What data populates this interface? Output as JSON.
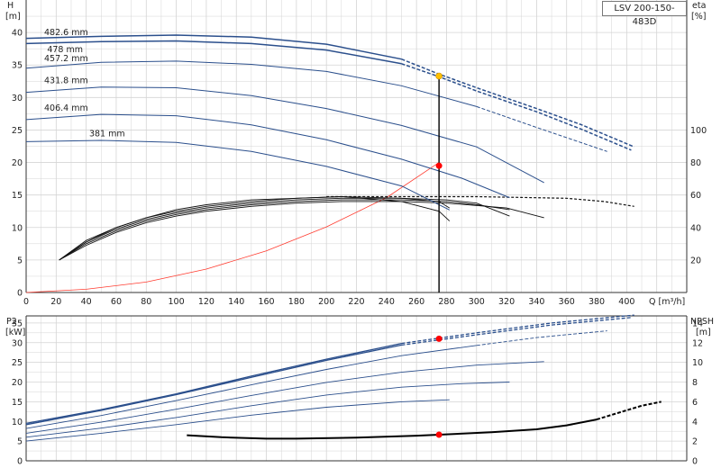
{
  "model": "LSV 200-150-483D",
  "colors": {
    "curve_blue": "#2b4f8c",
    "npsh_black": "#000000",
    "system_red": "#ff3b2f",
    "operating_point": "#ff0000",
    "duty_point_marker": "#ffc000",
    "grid": "#d4d4d4"
  },
  "chart_data": [
    {
      "type": "line",
      "id": "head-curve",
      "ylabel_left": "H",
      "ylabel_left_unit": "[m]",
      "ylabel_right": "eta",
      "ylabel_right_unit": "[%]",
      "xlabel": "Q [m³/h]",
      "xlim": [
        0,
        440
      ],
      "ylim": [
        0,
        45
      ],
      "ylim_right": [
        0,
        100
      ],
      "xticks": [
        0,
        20,
        40,
        60,
        80,
        100,
        120,
        140,
        160,
        180,
        200,
        220,
        240,
        260,
        280,
        300,
        320,
        340,
        360,
        380,
        400
      ],
      "yticks": [
        0,
        5,
        10,
        15,
        20,
        25,
        30,
        35,
        40
      ],
      "yticks_right": [
        20,
        40,
        60,
        80,
        100
      ],
      "grid": true,
      "head_series": [
        {
          "name": "482.6 mm",
          "points": [
            [
              0,
              39.1
            ],
            [
              50,
              39.4
            ],
            [
              100,
              39.6
            ],
            [
              150,
              39.3
            ],
            [
              200,
              38.2
            ],
            [
              250,
              35.9
            ]
          ],
          "dashed_points": [
            [
              250,
              35.9
            ],
            [
              275,
              33.6
            ],
            [
              300,
              31.5
            ],
            [
              340,
              28.3
            ],
            [
              370,
              25.8
            ],
            [
              405,
              22.4
            ]
          ]
        },
        {
          "name": "478 mm",
          "points": [
            [
              0,
              38.3
            ],
            [
              50,
              38.6
            ],
            [
              100,
              38.7
            ],
            [
              150,
              38.3
            ],
            [
              200,
              37.3
            ],
            [
              250,
              35.2
            ]
          ],
          "dashed_points": [
            [
              250,
              35.2
            ],
            [
              275,
              33.2
            ],
            [
              300,
              31.0
            ],
            [
              340,
              27.8
            ],
            [
              370,
              25.1
            ],
            [
              403,
              21.9
            ]
          ]
        },
        {
          "name": "457.2 mm",
          "points": [
            [
              0,
              34.5
            ],
            [
              50,
              35.4
            ],
            [
              100,
              35.6
            ],
            [
              150,
              35.1
            ],
            [
              200,
              34.0
            ],
            [
              250,
              31.8
            ],
            [
              300,
              28.6
            ]
          ],
          "dashed_points": [
            [
              300,
              28.6
            ],
            [
              340,
              25.4
            ],
            [
              387,
              21.7
            ]
          ]
        },
        {
          "name": "431.8 mm",
          "points": [
            [
              0,
              30.8
            ],
            [
              50,
              31.6
            ],
            [
              100,
              31.5
            ],
            [
              150,
              30.3
            ],
            [
              200,
              28.3
            ],
            [
              250,
              25.7
            ],
            [
              300,
              22.4
            ],
            [
              345,
              16.9
            ]
          ]
        },
        {
          "name": "406.4 mm",
          "points": [
            [
              0,
              26.6
            ],
            [
              50,
              27.4
            ],
            [
              100,
              27.2
            ],
            [
              150,
              25.8
            ],
            [
              200,
              23.5
            ],
            [
              250,
              20.5
            ],
            [
              290,
              17.6
            ],
            [
              322,
              14.6
            ]
          ]
        },
        {
          "name": "381 mm",
          "points": [
            [
              0,
              23.2
            ],
            [
              50,
              23.4
            ],
            [
              100,
              23.1
            ],
            [
              150,
              21.7
            ],
            [
              200,
              19.4
            ],
            [
              250,
              16.4
            ],
            [
              282,
              12.7
            ]
          ]
        }
      ],
      "efficiency_series": [
        {
          "name": "",
          "points": [
            [
              22,
              20
            ],
            [
              40,
              29
            ],
            [
              60,
              37
            ],
            [
              80,
              43
            ],
            [
              100,
              47
            ],
            [
              120,
              50
            ],
            [
              150,
              53
            ],
            [
              180,
              55
            ],
            [
              210,
              56
            ],
            [
              250,
              56
            ],
            [
              280,
              55
            ],
            [
              320,
              52
            ],
            [
              345,
              46
            ]
          ]
        },
        {
          "name": "",
          "points": [
            [
              22,
              20
            ],
            [
              40,
              30
            ],
            [
              60,
              38
            ],
            [
              80,
              44
            ],
            [
              100,
              48
            ],
            [
              120,
              51
            ],
            [
              150,
              54
            ],
            [
              180,
              56
            ],
            [
              210,
              57
            ],
            [
              250,
              57
            ],
            [
              280,
              56
            ],
            [
              300,
              54
            ],
            [
              322,
              51
            ]
          ]
        },
        {
          "name": "",
          "points": [
            [
              22,
              20
            ],
            [
              40,
              31
            ],
            [
              60,
              39
            ],
            [
              80,
              45
            ],
            [
              100,
              49
            ],
            [
              120,
              52
            ],
            [
              150,
              55
            ],
            [
              180,
              57
            ],
            [
              210,
              58
            ],
            [
              250,
              58
            ],
            [
              280,
              57
            ],
            [
              300,
              55
            ],
            [
              322,
              47
            ]
          ]
        },
        {
          "name": "",
          "points": [
            [
              22,
              20
            ],
            [
              40,
              31
            ],
            [
              60,
              40
            ],
            [
              80,
              46
            ],
            [
              100,
              50
            ],
            [
              120,
              53
            ],
            [
              150,
              56
            ],
            [
              180,
              58
            ],
            [
              210,
              59
            ],
            [
              250,
              58
            ],
            [
              275,
              56
            ],
            [
              282,
              52
            ]
          ]
        },
        {
          "name": "",
          "points": [
            [
              22,
              20
            ],
            [
              40,
              32
            ],
            [
              60,
              40
            ],
            [
              80,
              46
            ],
            [
              100,
              51
            ],
            [
              120,
              54
            ],
            [
              150,
              57
            ],
            [
              180,
              58
            ],
            [
              210,
              59
            ],
            [
              250,
              56
            ],
            [
              275,
              50
            ],
            [
              282,
              44
            ]
          ]
        }
      ],
      "efficiency_series_dashed": [
        {
          "name": "",
          "points": [
            [
              200,
              59
            ],
            [
              250,
              59
            ],
            [
              280,
              59
            ],
            [
              300,
              59
            ],
            [
              330,
              58.5
            ],
            [
              360,
              58
            ],
            [
              385,
              56
            ],
            [
              405,
              53
            ]
          ]
        }
      ],
      "system_curve": [
        [
          0,
          0
        ],
        [
          40,
          0.5
        ],
        [
          80,
          1.6
        ],
        [
          120,
          3.6
        ],
        [
          160,
          6.4
        ],
        [
          200,
          10.1
        ],
        [
          240,
          14.6
        ],
        [
          275,
          20.0
        ]
      ],
      "duty_point": {
        "q": 275,
        "h": 33.3
      },
      "operating_point": {
        "q": 275,
        "eta": 78
      }
    },
    {
      "type": "line",
      "id": "power-npsh",
      "ylabel_left": "P2",
      "ylabel_left_unit": "[kW]",
      "ylabel_right": "NPSH",
      "ylabel_right_unit": "[m]",
      "xlim": [
        0,
        440
      ],
      "ylim": [
        0,
        40
      ],
      "ylim_right": [
        0,
        16
      ],
      "yticks": [
        0,
        5,
        10,
        15,
        20,
        25,
        30,
        35
      ],
      "yticks_right": [
        0,
        2,
        4,
        6,
        8,
        10,
        12,
        14
      ],
      "grid": true,
      "power_series": [
        {
          "name": "482.6 mm",
          "points": [
            [
              0,
              9.5
            ],
            [
              50,
              13.0
            ],
            [
              100,
              17.0
            ],
            [
              150,
              21.5
            ],
            [
              200,
              25.8
            ],
            [
              250,
              29.8
            ]
          ],
          "dashed_points": [
            [
              250,
              29.8
            ],
            [
              300,
              32.5
            ],
            [
              350,
              35.0
            ],
            [
              405,
              37.0
            ]
          ]
        },
        {
          "name": "478 mm",
          "points": [
            [
              0,
              9.2
            ],
            [
              50,
              12.8
            ],
            [
              100,
              16.8
            ],
            [
              150,
              21.2
            ],
            [
              200,
              25.5
            ],
            [
              250,
              29.4
            ]
          ],
          "dashed_points": [
            [
              250,
              29.4
            ],
            [
              300,
              32.0
            ],
            [
              350,
              34.5
            ],
            [
              403,
              36.4
            ]
          ]
        },
        {
          "name": "457.2 mm",
          "points": [
            [
              0,
              8.2
            ],
            [
              50,
              11.5
            ],
            [
              100,
              15.3
            ],
            [
              150,
              19.3
            ],
            [
              200,
              23.2
            ],
            [
              250,
              26.7
            ],
            [
              300,
              29.3
            ]
          ],
          "dashed_points": [
            [
              300,
              29.3
            ],
            [
              340,
              31.3
            ],
            [
              387,
              33.0
            ]
          ]
        },
        {
          "name": "431.8 mm",
          "points": [
            [
              0,
              7.0
            ],
            [
              50,
              9.8
            ],
            [
              100,
              13.1
            ],
            [
              150,
              16.6
            ],
            [
              200,
              19.9
            ],
            [
              250,
              22.5
            ],
            [
              300,
              24.3
            ],
            [
              345,
              25.2
            ]
          ]
        },
        {
          "name": "406.4 mm",
          "points": [
            [
              0,
              6.0
            ],
            [
              50,
              8.3
            ],
            [
              100,
              11.0
            ],
            [
              150,
              14.0
            ],
            [
              200,
              16.7
            ],
            [
              250,
              18.7
            ],
            [
              290,
              19.6
            ],
            [
              322,
              20.0
            ]
          ]
        },
        {
          "name": "381 mm",
          "points": [
            [
              0,
              5.0
            ],
            [
              50,
              7.0
            ],
            [
              100,
              9.2
            ],
            [
              150,
              11.6
            ],
            [
              200,
              13.6
            ],
            [
              250,
              15.0
            ],
            [
              282,
              15.5
            ]
          ]
        }
      ],
      "npsh_series": {
        "points": [
          [
            107,
            2.6
          ],
          [
            130,
            2.4
          ],
          [
            160,
            2.25
          ],
          [
            180,
            2.25
          ],
          [
            220,
            2.35
          ],
          [
            260,
            2.55
          ],
          [
            275,
            2.65
          ],
          [
            310,
            2.9
          ],
          [
            340,
            3.2
          ],
          [
            360,
            3.6
          ],
          [
            380,
            4.2
          ]
        ],
        "dashed_points": [
          [
            380,
            4.2
          ],
          [
            395,
            4.9
          ],
          [
            410,
            5.6
          ],
          [
            423,
            6.0
          ]
        ]
      },
      "power_duty_point": {
        "q": 275,
        "p2": 31
      },
      "npsh_duty_point": {
        "q": 275,
        "npsh": 2.65
      }
    }
  ]
}
